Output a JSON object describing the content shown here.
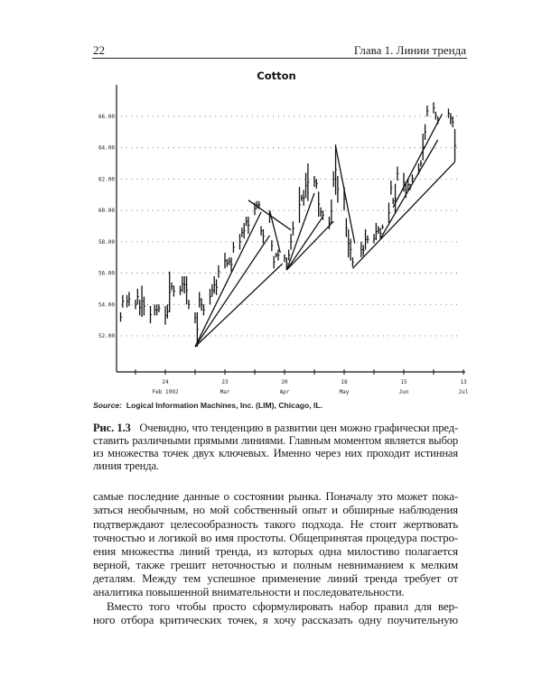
{
  "header": {
    "page_number": "22",
    "chapter": "Глава 1. Линии тренда"
  },
  "figure": {
    "source_label": "Source:",
    "source_text": "Logical Information Machines, Inc. (LIM), Chicago, IL.",
    "caption_label": "Рис. 1.3",
    "caption_lines": [
      "Очевидно, что тенденцию в развитии цен можно графически пред-",
      "ставить различными прямыми линиями. Главным моментом является выбор",
      "из множества точек двух ключевых. Именно через них проходит истинная",
      "линия тренда."
    ]
  },
  "body_lines": [
    "самые последние данные о состоянии рынка. Поначалу это может пока-",
    "заться необычным, но мой собственный опыт и обширные наблюдения",
    "подтверждают целесообразность такого подхода. Не стоит жертвовать",
    "точностью и логикой во имя простоты. Общепринятая процедура постро-",
    "ения множества линий тренда, из которых одна милостиво полагается",
    "верной, также грешит неточностью и полным невниманием к мелким",
    "деталям. Между тем успешное применение линий тренда требует от",
    "аналитика повышенной внимательности и последовательности.",
    "Вместо того чтобы просто сформулировать набор правил для вер-",
    "ного отбора критических точек, я хочу рассказать одну поучительную"
  ],
  "chart_data": {
    "type": "bar",
    "subtype": "high-low price bars with trendlines",
    "title": "Cotton",
    "ylim": [
      50,
      67
    ],
    "yticks": [
      "52.00",
      "54.00",
      "56.00",
      "58.00",
      "60.00",
      "62.00",
      "64.00",
      "66.00"
    ],
    "xticks": [
      {
        "day": "24",
        "month": "Feb 1992",
        "date": "1992-02-24"
      },
      {
        "day": "23",
        "month": "Mar",
        "date": "1992-03-23"
      },
      {
        "day": "20",
        "month": "Apr",
        "date": "1992-04-20"
      },
      {
        "day": "18",
        "month": "May",
        "date": "1992-05-18"
      },
      {
        "day": "15",
        "month": "Jun",
        "date": "1992-06-15"
      },
      {
        "day": "13",
        "month": "Jul",
        "date": "1992-07-13"
      }
    ],
    "grid": "horizontal dotted",
    "bars": [
      [
        "1992-02-03",
        53.5,
        52.9
      ],
      [
        "1992-02-04",
        54.6,
        53.8
      ],
      [
        "1992-02-06",
        54.6,
        53.8
      ],
      [
        "1992-02-07",
        54.8,
        53.9
      ],
      [
        "1992-02-10",
        54.3,
        53.7
      ],
      [
        "1992-02-11",
        55.0,
        54.0
      ],
      [
        "1992-02-12",
        54.3,
        53.3
      ],
      [
        "1992-02-13",
        55.2,
        53.2
      ],
      [
        "1992-02-14",
        54.5,
        53.3
      ],
      [
        "1992-02-17",
        53.9,
        52.8
      ],
      [
        "1992-02-19",
        54.0,
        53.3
      ],
      [
        "1992-02-20",
        54.0,
        53.3
      ],
      [
        "1992-02-21",
        54.0,
        53.5
      ],
      [
        "1992-02-24",
        53.9,
        52.7
      ],
      [
        "1992-02-25",
        54.0,
        53.1
      ],
      [
        "1992-02-26",
        56.1,
        53.5
      ],
      [
        "1992-02-27",
        55.4,
        54.9
      ],
      [
        "1992-02-28",
        55.2,
        54.5
      ],
      [
        "1992-03-02",
        55.2,
        54.6
      ],
      [
        "1992-03-03",
        55.8,
        54.8
      ],
      [
        "1992-03-04",
        55.8,
        54.7
      ],
      [
        "1992-03-05",
        55.8,
        54.0
      ],
      [
        "1992-03-06",
        54.3,
        53.7
      ],
      [
        "1992-03-09",
        53.5,
        52.8
      ],
      [
        "1992-03-10",
        53.5,
        51.3
      ],
      [
        "1992-03-11",
        54.8,
        53.8
      ],
      [
        "1992-03-12",
        54.4,
        53.6
      ],
      [
        "1992-03-13",
        54.0,
        53.3
      ],
      [
        "1992-03-16",
        55.0,
        54.0
      ],
      [
        "1992-03-17",
        55.3,
        54.5
      ],
      [
        "1992-03-18",
        55.8,
        54.7
      ],
      [
        "1992-03-19",
        55.6,
        54.6
      ],
      [
        "1992-03-20",
        56.5,
        55.7
      ],
      [
        "1992-03-23",
        57.3,
        56.3
      ],
      [
        "1992-03-24",
        56.9,
        56.4
      ],
      [
        "1992-03-25",
        57.0,
        56.5
      ],
      [
        "1992-03-26",
        57.0,
        56.1
      ],
      [
        "1992-03-27",
        58.0,
        57.3
      ],
      [
        "1992-03-30",
        58.5,
        57.5
      ],
      [
        "1992-03-31",
        58.9,
        58.3
      ],
      [
        "1992-04-01",
        59.2,
        58.2
      ],
      [
        "1992-04-02",
        59.6,
        59.0
      ],
      [
        "1992-04-03",
        59.6,
        58.5
      ],
      [
        "1992-04-06",
        60.5,
        59.7
      ],
      [
        "1992-04-07",
        60.6,
        60.1
      ],
      [
        "1992-04-08",
        60.6,
        60.1
      ],
      [
        "1992-04-09",
        59.0,
        58.4
      ],
      [
        "1992-04-10",
        58.8,
        57.9
      ],
      [
        "1992-04-13",
        60.0,
        59.2
      ],
      [
        "1992-04-14",
        58.1,
        57.4
      ],
      [
        "1992-04-15",
        57.1,
        56.3
      ],
      [
        "1992-04-16",
        57.3,
        57.0
      ],
      [
        "1992-04-17",
        57.5,
        56.8
      ],
      [
        "1992-04-20",
        57.2,
        56.7
      ],
      [
        "1992-04-21",
        57.0,
        56.2
      ],
      [
        "1992-04-22",
        57.5,
        56.8
      ],
      [
        "1992-04-23",
        58.5,
        57.5
      ],
      [
        "1992-04-24",
        59.3,
        58.4
      ],
      [
        "1992-04-27",
        61.5,
        59.2
      ],
      [
        "1992-04-28",
        61.0,
        60.6
      ],
      [
        "1992-04-29",
        61.3,
        60.3
      ],
      [
        "1992-04-30",
        62.4,
        60.8
      ],
      [
        "1992-05-01",
        63.0,
        60.6
      ],
      [
        "1992-05-04",
        62.2,
        61.5
      ],
      [
        "1992-05-05",
        62.0,
        61.4
      ],
      [
        "1992-05-06",
        61.2,
        59.6
      ],
      [
        "1992-05-07",
        60.2,
        59.6
      ],
      [
        "1992-05-08",
        60.0,
        59.4
      ],
      [
        "1992-05-11",
        59.6,
        58.8
      ],
      [
        "1992-05-12",
        60.7,
        59.2
      ],
      [
        "1992-05-13",
        62.5,
        61.5
      ],
      [
        "1992-05-14",
        64.2,
        61.0
      ],
      [
        "1992-05-15",
        62.2,
        60.5
      ],
      [
        "1992-05-18",
        61.5,
        60.0
      ],
      [
        "1992-05-19",
        59.5,
        58.3
      ],
      [
        "1992-05-20",
        58.8,
        57.0
      ],
      [
        "1992-05-21",
        58.2,
        56.8
      ],
      [
        "1992-05-22",
        57.0,
        56.4
      ],
      [
        "1992-05-26",
        58.0,
        57.0
      ],
      [
        "1992-05-27",
        57.8,
        57.1
      ],
      [
        "1992-05-28",
        58.8,
        57.5
      ],
      [
        "1992-05-29",
        58.4,
        57.9
      ],
      [
        "1992-06-01",
        58.5,
        57.9
      ],
      [
        "1992-06-02",
        59.2,
        58.1
      ],
      [
        "1992-06-03",
        59.0,
        58.5
      ],
      [
        "1992-06-04",
        58.9,
        58.2
      ],
      [
        "1992-06-05",
        59.1,
        58.8
      ],
      [
        "1992-06-08",
        60.5,
        59.2
      ],
      [
        "1992-06-09",
        61.9,
        61.0
      ],
      [
        "1992-06-10",
        60.8,
        60.4
      ],
      [
        "1992-06-11",
        61.7,
        59.8
      ],
      [
        "1992-06-12",
        62.8,
        61.9
      ],
      [
        "1992-06-15",
        62.4,
        61.2
      ],
      [
        "1992-06-16",
        61.8,
        60.8
      ],
      [
        "1992-06-17",
        62.0,
        61.3
      ],
      [
        "1992-06-18",
        61.7,
        61.3
      ],
      [
        "1992-06-19",
        62.3,
        61.8
      ],
      [
        "1992-06-22",
        63.0,
        62.3
      ],
      [
        "1992-06-23",
        63.2,
        62.8
      ],
      [
        "1992-06-24",
        64.9,
        63.2
      ],
      [
        "1992-06-25",
        65.5,
        64.5
      ],
      [
        "1992-06-26",
        66.7,
        66.0
      ],
      [
        "1992-06-29",
        66.9,
        66.2
      ],
      [
        "1992-06-30",
        66.3,
        65.8
      ],
      [
        "1992-07-01",
        66.0,
        65.5
      ],
      [
        "1992-07-06",
        66.5,
        65.9
      ],
      [
        "1992-07-07",
        66.2,
        65.5
      ],
      [
        "1992-07-08",
        66.0,
        65.3
      ],
      [
        "1992-07-09",
        65.2,
        63.1
      ]
    ],
    "trendlines": [
      [
        [
          "1992-03-09",
          51.3
        ],
        [
          "1992-04-09",
          59.9
        ]
      ],
      [
        [
          "1992-03-09",
          51.3
        ],
        [
          "1992-04-13",
          58.4
        ]
      ],
      [
        [
          "1992-03-09",
          51.3
        ],
        [
          "1992-04-19",
          56.6
        ]
      ],
      [
        [
          "1992-04-03",
          60.65
        ],
        [
          "1992-04-23",
          58.75
        ]
      ],
      [
        [
          "1992-04-13",
          60.0
        ],
        [
          "1992-04-18",
          57.3
        ]
      ],
      [
        [
          "1992-04-21",
          56.2
        ],
        [
          "1992-05-04",
          61.1
        ]
      ],
      [
        [
          "1992-04-21",
          56.2
        ],
        [
          "1992-05-08",
          59.6
        ]
      ],
      [
        [
          "1992-04-21",
          56.2
        ],
        [
          "1992-05-13",
          59.3
        ]
      ],
      [
        [
          "1992-05-14",
          64.1
        ],
        [
          "1992-05-23",
          57.9
        ]
      ],
      [
        [
          "1992-05-22",
          56.3
        ],
        [
          "1992-07-09",
          63.1
        ]
      ],
      [
        [
          "1992-06-04",
          58.2
        ],
        [
          "1992-07-01",
          64.5
        ]
      ],
      [
        [
          "1992-06-10",
          60.2
        ],
        [
          "1992-07-03",
          66.15
        ]
      ]
    ],
    "colors": {
      "ink": "#111111",
      "paper": "#ffffff"
    }
  }
}
